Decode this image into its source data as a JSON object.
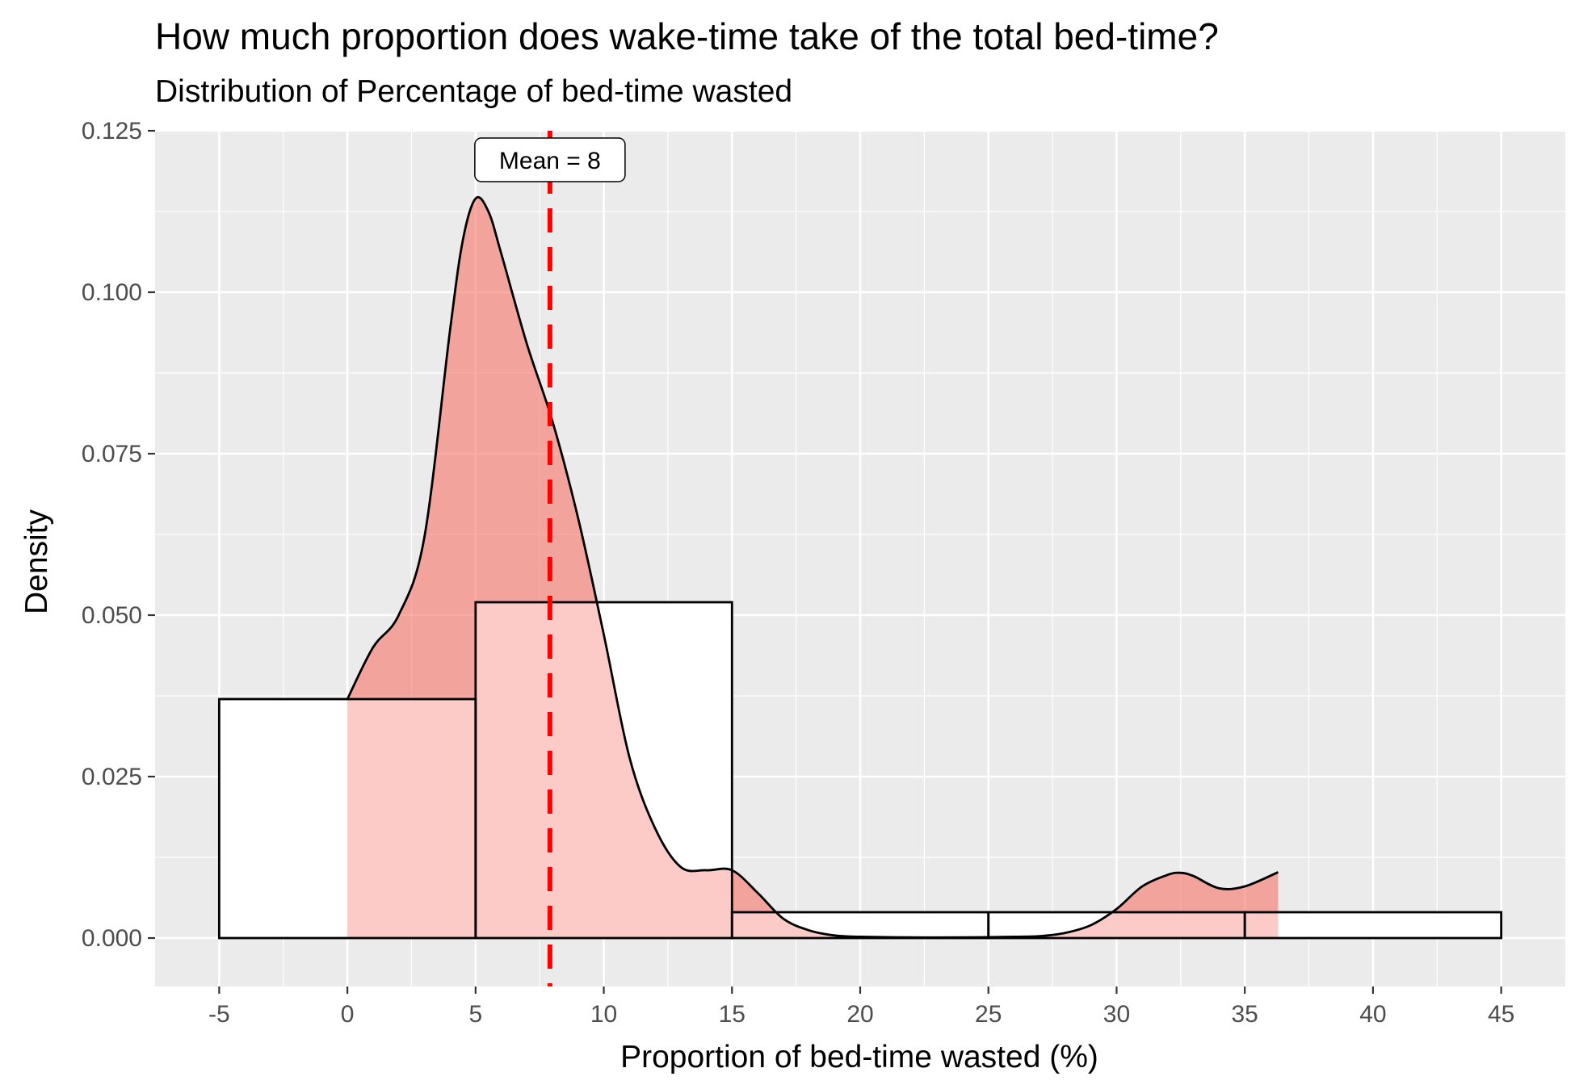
{
  "chart_data": {
    "type": "histogram",
    "title": "How much proportion does wake-time take of the total bed-time?",
    "subtitle": "Distribution of Percentage of bed-time wasted",
    "xlabel": "Proportion of bed-time wasted (%)",
    "ylabel": "Density",
    "xlim": [
      -7.5,
      47.5
    ],
    "ylim": [
      -0.0075,
      0.125
    ],
    "x_ticks": [
      -5,
      0,
      5,
      10,
      15,
      20,
      25,
      30,
      35,
      40,
      45
    ],
    "x_tick_labels": [
      "-5",
      "0",
      "5",
      "10",
      "15",
      "20",
      "25",
      "30",
      "35",
      "40",
      "45"
    ],
    "y_ticks": [
      0,
      0.025,
      0.05,
      0.075,
      0.1,
      0.125
    ],
    "y_tick_labels": [
      "0.000",
      "0.025",
      "0.050",
      "0.075",
      "0.100",
      "0.125"
    ],
    "grid": true,
    "histogram": {
      "bins": [
        {
          "start": -5,
          "end": 5,
          "density": 0.037
        },
        {
          "start": 5,
          "end": 15,
          "density": 0.052
        },
        {
          "start": 15,
          "end": 25,
          "density": 0.004
        },
        {
          "start": 25,
          "end": 35,
          "density": 0.004
        },
        {
          "start": 35,
          "end": 45,
          "density": 0.004
        }
      ],
      "fill": "#ffffff",
      "stroke": "#000000"
    },
    "density": {
      "x": [
        0,
        1,
        2,
        3,
        4,
        4.5,
        5,
        5.5,
        6,
        7,
        8,
        9,
        10,
        11,
        12,
        13,
        14,
        15,
        16,
        17,
        18,
        19,
        20,
        22,
        24,
        26,
        27,
        28,
        29,
        30,
        31,
        32,
        32.5,
        33,
        34,
        35,
        36.3
      ],
      "y": [
        0.037,
        0.045,
        0.05,
        0.062,
        0.094,
        0.108,
        0.1145,
        0.1125,
        0.106,
        0.092,
        0.08,
        0.065,
        0.047,
        0.028,
        0.017,
        0.011,
        0.0105,
        0.0105,
        0.007,
        0.003,
        0.0012,
        0.0004,
        0.0002,
        0.0001,
        0.0001,
        0.0002,
        0.0003,
        0.0008,
        0.002,
        0.0045,
        0.008,
        0.0098,
        0.0101,
        0.0096,
        0.0077,
        0.008,
        0.0102
      ],
      "fill": "#f8766d",
      "fill_opacity": 0.38,
      "stroke": "#000000"
    },
    "mean_line": {
      "x": 7.9,
      "color": "#ff0000",
      "style": "dashed"
    },
    "annotation": {
      "text": "Mean =  8",
      "x": 7.9,
      "y": 0.1205
    }
  }
}
